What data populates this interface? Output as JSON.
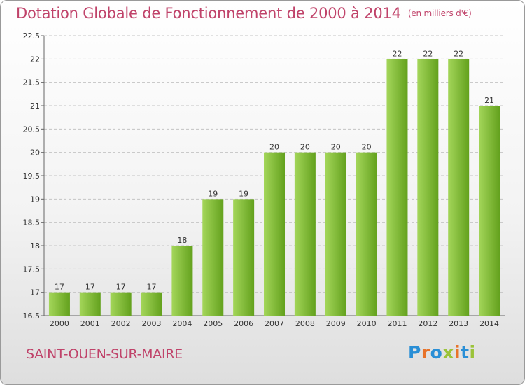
{
  "title": "Dotation Globale de Fonctionnement de 2000 à 2014",
  "unit_note": "(en milliers d'€)",
  "commune": "SAINT-OUEN-SUR-MAIRE",
  "logo": {
    "text": "Proxiti",
    "letters": [
      "P",
      "r",
      "o",
      "x",
      "i",
      "t",
      "i"
    ],
    "colors": [
      "#2a8fd6",
      "#e8732a",
      "#2a8fd6",
      "#9bc33a",
      "#e8732a",
      "#2a8fd6",
      "#9bc33a"
    ]
  },
  "colors": {
    "bar_light": "#a4d65a",
    "bar_dark": "#63a11d",
    "title": "#c0436a",
    "grid": "#c4c4c4"
  },
  "chart_data": {
    "type": "bar",
    "categories": [
      "2000",
      "2001",
      "2002",
      "2003",
      "2004",
      "2005",
      "2006",
      "2007",
      "2008",
      "2009",
      "2010",
      "2011",
      "2012",
      "2013",
      "2014"
    ],
    "values": [
      17,
      17,
      17,
      17,
      18,
      19,
      19,
      20,
      20,
      20,
      20,
      22,
      22,
      22,
      21
    ],
    "data_labels": [
      "17",
      "17",
      "17",
      "17",
      "18",
      "19",
      "19",
      "20",
      "20",
      "20",
      "20",
      "22",
      "22",
      "22",
      "21"
    ],
    "yticks": [
      16.5,
      17,
      17.5,
      18,
      18.5,
      19,
      19.5,
      20,
      20.5,
      21,
      21.5,
      22,
      22.5
    ],
    "ylim": [
      16.5,
      22.5
    ],
    "grid": "horizontal-dashed",
    "legend": "none"
  }
}
